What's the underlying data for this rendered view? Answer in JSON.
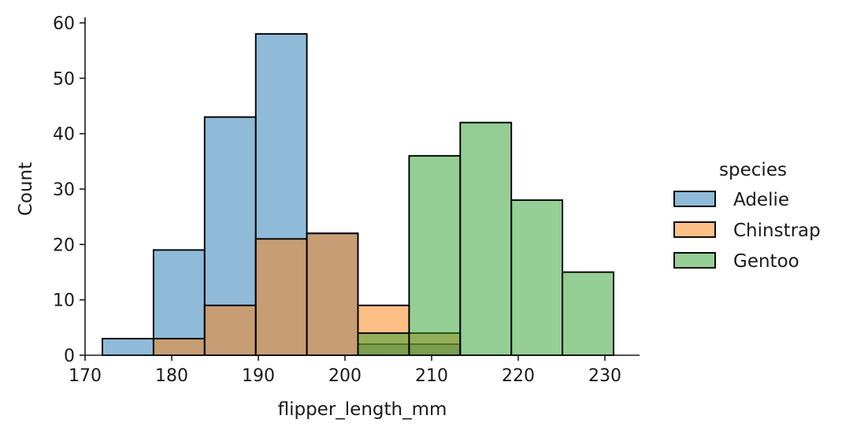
{
  "chart_data": {
    "type": "bar",
    "subtype": "histogram",
    "title": "",
    "xlabel": "flipper_length_mm",
    "ylabel": "Count",
    "xlim": [
      170,
      234
    ],
    "ylim": [
      0,
      61
    ],
    "xticks": [
      170,
      180,
      190,
      200,
      210,
      220,
      230
    ],
    "yticks": [
      0,
      10,
      20,
      30,
      40,
      50,
      60
    ],
    "bin_edges": [
      172.0,
      177.9,
      183.8,
      189.7,
      195.6,
      201.5,
      207.4,
      213.3,
      219.2,
      225.1,
      231.0
    ],
    "legend": {
      "title": "species",
      "position": "right"
    },
    "grid": false,
    "series": [
      {
        "name": "Adelie",
        "color": "#1f77b4",
        "values": [
          3,
          19,
          43,
          58,
          22,
          2,
          2,
          0,
          0,
          0
        ]
      },
      {
        "name": "Chinstrap",
        "color": "#ff7f0e",
        "values": [
          0,
          3,
          9,
          21,
          22,
          9,
          4,
          0,
          0,
          0
        ]
      },
      {
        "name": "Gentoo",
        "color": "#2ca02c",
        "values": [
          0,
          0,
          0,
          0,
          0,
          4,
          36,
          42,
          28,
          15
        ]
      }
    ]
  }
}
